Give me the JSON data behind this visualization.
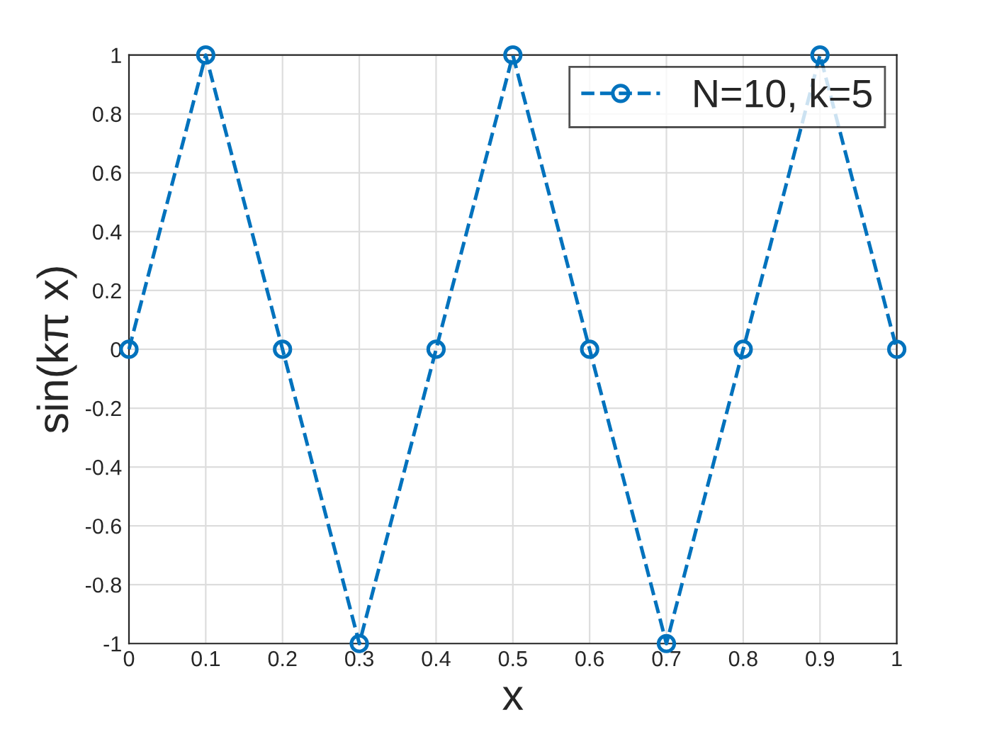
{
  "chart_data": {
    "type": "line",
    "xlabel": "x",
    "ylabel": "sin(kπ x)",
    "x": [
      0,
      0.1,
      0.2,
      0.3,
      0.4,
      0.5,
      0.6,
      0.7,
      0.8,
      0.9,
      1
    ],
    "series": [
      {
        "name": "N=10, k=5",
        "color": "#0072bd",
        "values": [
          0,
          1,
          0,
          -1,
          0,
          1,
          0,
          -1,
          0,
          1,
          0
        ]
      }
    ],
    "xlim": [
      0,
      1
    ],
    "xticks": [
      0,
      0.1,
      0.2,
      0.3,
      0.4,
      0.5,
      0.6,
      0.7,
      0.8,
      0.9,
      1
    ],
    "ylim": [
      -1,
      1
    ],
    "yticks": [
      -1,
      -0.8,
      -0.6,
      -0.4,
      -0.2,
      0,
      0.2,
      0.4,
      0.6,
      0.8,
      1
    ],
    "grid": true,
    "legend": "top right",
    "marker": "circle",
    "line_style": "dashed"
  }
}
